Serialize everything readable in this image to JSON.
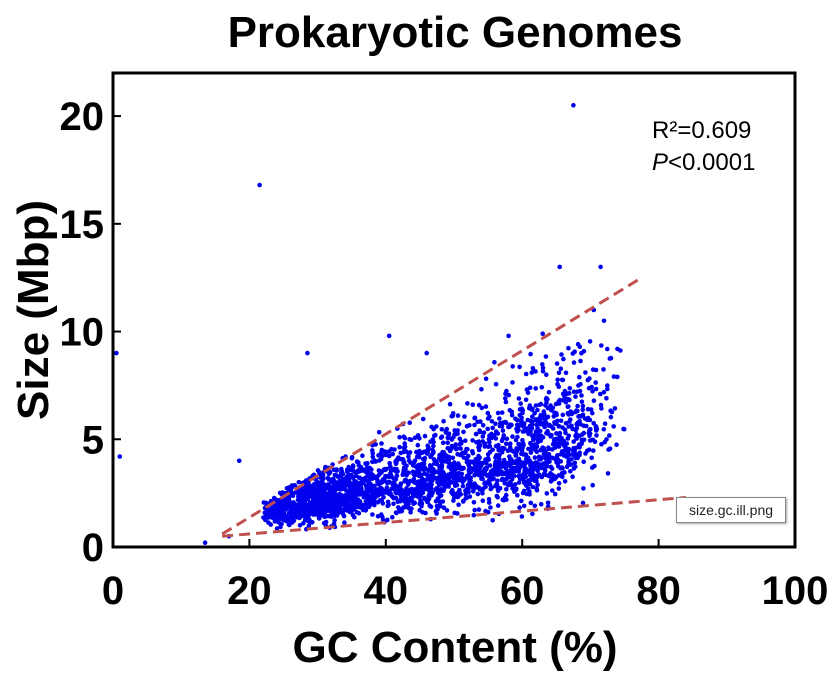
{
  "chart_data": {
    "type": "scatter",
    "title": "Prokaryotic Genomes",
    "xlabel": "GC Content (%)",
    "ylabel": "Size (Mbp)",
    "xlim": [
      0,
      100
    ],
    "ylim": [
      0,
      22
    ],
    "xticks": [
      "0",
      "20",
      "40",
      "60",
      "80",
      "100"
    ],
    "yticks": [
      "0",
      "5",
      "10",
      "15",
      "20"
    ],
    "grid": false,
    "point_color": "#0000ee",
    "trend_color": "#c0504d",
    "annotations": {
      "r_squared": "R²=0.609",
      "p_italic": "P",
      "p_rest": "<0.0001"
    },
    "outliers": [
      {
        "x": 67.5,
        "y": 20.5
      },
      {
        "x": 21.5,
        "y": 16.8
      },
      {
        "x": 65.5,
        "y": 13.0
      },
      {
        "x": 71.5,
        "y": 13.0
      },
      {
        "x": 28.5,
        "y": 9.0
      },
      {
        "x": 40.5,
        "y": 9.8
      },
      {
        "x": 1.0,
        "y": 4.2
      },
      {
        "x": 0.5,
        "y": 9.0
      },
      {
        "x": 18.5,
        "y": 4.0
      },
      {
        "x": 13.5,
        "y": 0.2
      },
      {
        "x": 17.0,
        "y": 0.5
      },
      {
        "x": 70.5,
        "y": 11.0
      },
      {
        "x": 72.0,
        "y": 10.5
      },
      {
        "x": 58.0,
        "y": 9.8
      },
      {
        "x": 63.0,
        "y": 9.9
      },
      {
        "x": 46.0,
        "y": 9.0
      }
    ],
    "cluster": {
      "description_points": "dense cloud of ~2500 genomes",
      "x_range": [
        22,
        75
      ],
      "approx_count": 2500
    },
    "trend_lines": [
      {
        "name": "upper",
        "x": [
          16,
          77
        ],
        "y": [
          0.6,
          12.4
        ]
      },
      {
        "name": "lower",
        "x": [
          16,
          84
        ],
        "y": [
          0.5,
          2.3
        ]
      }
    ]
  },
  "file_label": "size.gc.ill.png"
}
